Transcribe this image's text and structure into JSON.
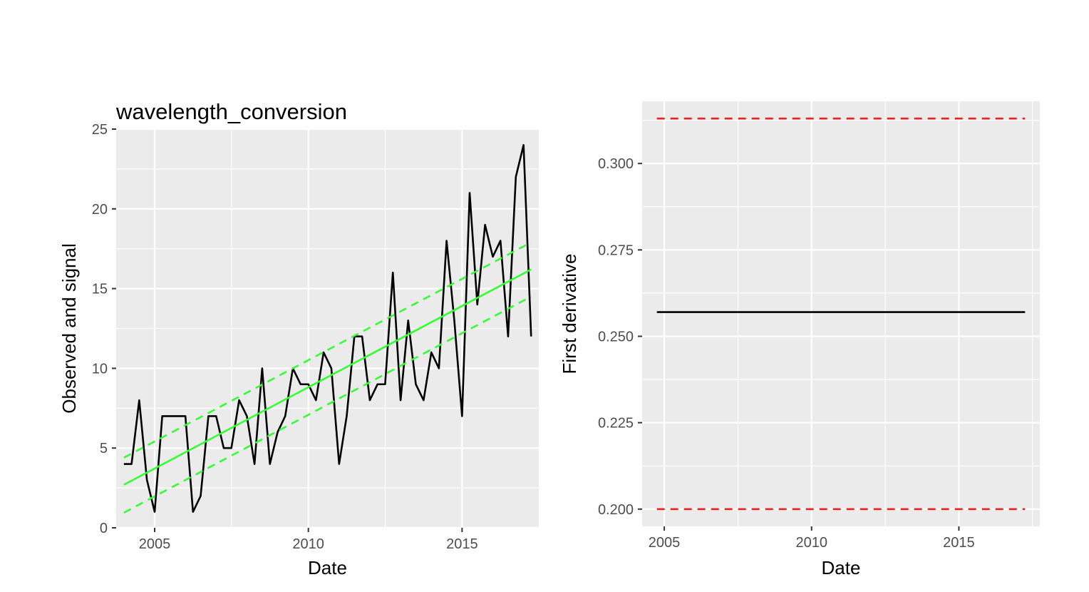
{
  "chart_data": [
    {
      "type": "line",
      "title": "wavelength_conversion",
      "xlabel": "Date",
      "ylabel": "Observed and signal",
      "x_ticks": [
        "2005",
        "2010",
        "2015"
      ],
      "y_ticks": [
        "0",
        "5",
        "10",
        "15",
        "20",
        "25"
      ],
      "xlim": [
        "2003-10-01",
        "2017-07-01"
      ],
      "ylim": [
        0,
        25
      ],
      "grid": true,
      "colors": {
        "observed": "#000000",
        "signal": "#33ff33"
      },
      "series": [
        {
          "style": "solid",
          "color": "#000000",
          "x": [
            "2004-01-01",
            "2004-04-01",
            "2004-07-01",
            "2004-10-01",
            "2005-01-01",
            "2005-04-01",
            "2005-07-01",
            "2005-10-01",
            "2006-01-01",
            "2006-04-01",
            "2006-07-01",
            "2006-10-01",
            "2007-01-01",
            "2007-04-01",
            "2007-07-01",
            "2007-10-01",
            "2008-01-01",
            "2008-04-01",
            "2008-07-01",
            "2008-10-01",
            "2009-01-01",
            "2009-04-01",
            "2009-07-01",
            "2009-10-01",
            "2010-01-01",
            "2010-04-01",
            "2010-07-01",
            "2010-10-01",
            "2011-01-01",
            "2011-04-01",
            "2011-07-01",
            "2011-10-01",
            "2012-01-01",
            "2012-04-01",
            "2012-07-01",
            "2012-10-01",
            "2013-01-01",
            "2013-04-01",
            "2013-07-01",
            "2013-10-01",
            "2014-01-01",
            "2014-04-01",
            "2014-07-01",
            "2014-10-01",
            "2015-01-01",
            "2015-04-01",
            "2015-07-01",
            "2015-10-01",
            "2016-01-01",
            "2016-04-01",
            "2016-07-01",
            "2016-10-01",
            "2017-01-01",
            "2017-04-01"
          ],
          "values": [
            4,
            4,
            8,
            3,
            1,
            7,
            7,
            7,
            7,
            1,
            2,
            7,
            7,
            5,
            5,
            8,
            7,
            4,
            10,
            4,
            6,
            7,
            10,
            9,
            9,
            8,
            11,
            10,
            4,
            7,
            12,
            12,
            8,
            9,
            9,
            16,
            8,
            13,
            9,
            8,
            11,
            10,
            18,
            13,
            7,
            21,
            14,
            19,
            17,
            18,
            12,
            22,
            24,
            12
          ]
        },
        {
          "style": "solid",
          "color": "#33ff33",
          "x": [
            "2004-01-01",
            "2017-04-01"
          ],
          "values": [
            2.7,
            16.2
          ]
        },
        {
          "style": "dashed",
          "color": "#33ff33",
          "x": [
            "2004-01-01",
            "2017-04-01"
          ],
          "values": [
            4.4,
            17.9
          ]
        },
        {
          "style": "dashed",
          "color": "#33ff33",
          "x": [
            "2004-01-01",
            "2017-04-01"
          ],
          "values": [
            0.95,
            14.5
          ]
        }
      ]
    },
    {
      "type": "line",
      "title": "",
      "xlabel": "Date",
      "ylabel": "First derivative",
      "x_ticks": [
        "2005",
        "2010",
        "2015"
      ],
      "y_ticks": [
        "0.200",
        "0.225",
        "0.250",
        "0.275",
        "0.300"
      ],
      "xlim": [
        "2004-04-01",
        "2017-10-01"
      ],
      "ylim": [
        0.195,
        0.318
      ],
      "grid": true,
      "colors": {
        "derivative": "#000000",
        "bounds": "#ee2222"
      },
      "series": [
        {
          "style": "solid",
          "color": "#000000",
          "x": [
            "2004-10-01",
            "2017-04-01"
          ],
          "values": [
            0.257,
            0.257
          ]
        },
        {
          "style": "dashed",
          "color": "#ee2222",
          "x": [
            "2004-10-01",
            "2017-04-01"
          ],
          "values": [
            0.313,
            0.313
          ]
        },
        {
          "style": "dashed",
          "color": "#ee2222",
          "x": [
            "2004-10-01",
            "2017-04-01"
          ],
          "values": [
            0.2,
            0.2
          ]
        }
      ]
    }
  ]
}
